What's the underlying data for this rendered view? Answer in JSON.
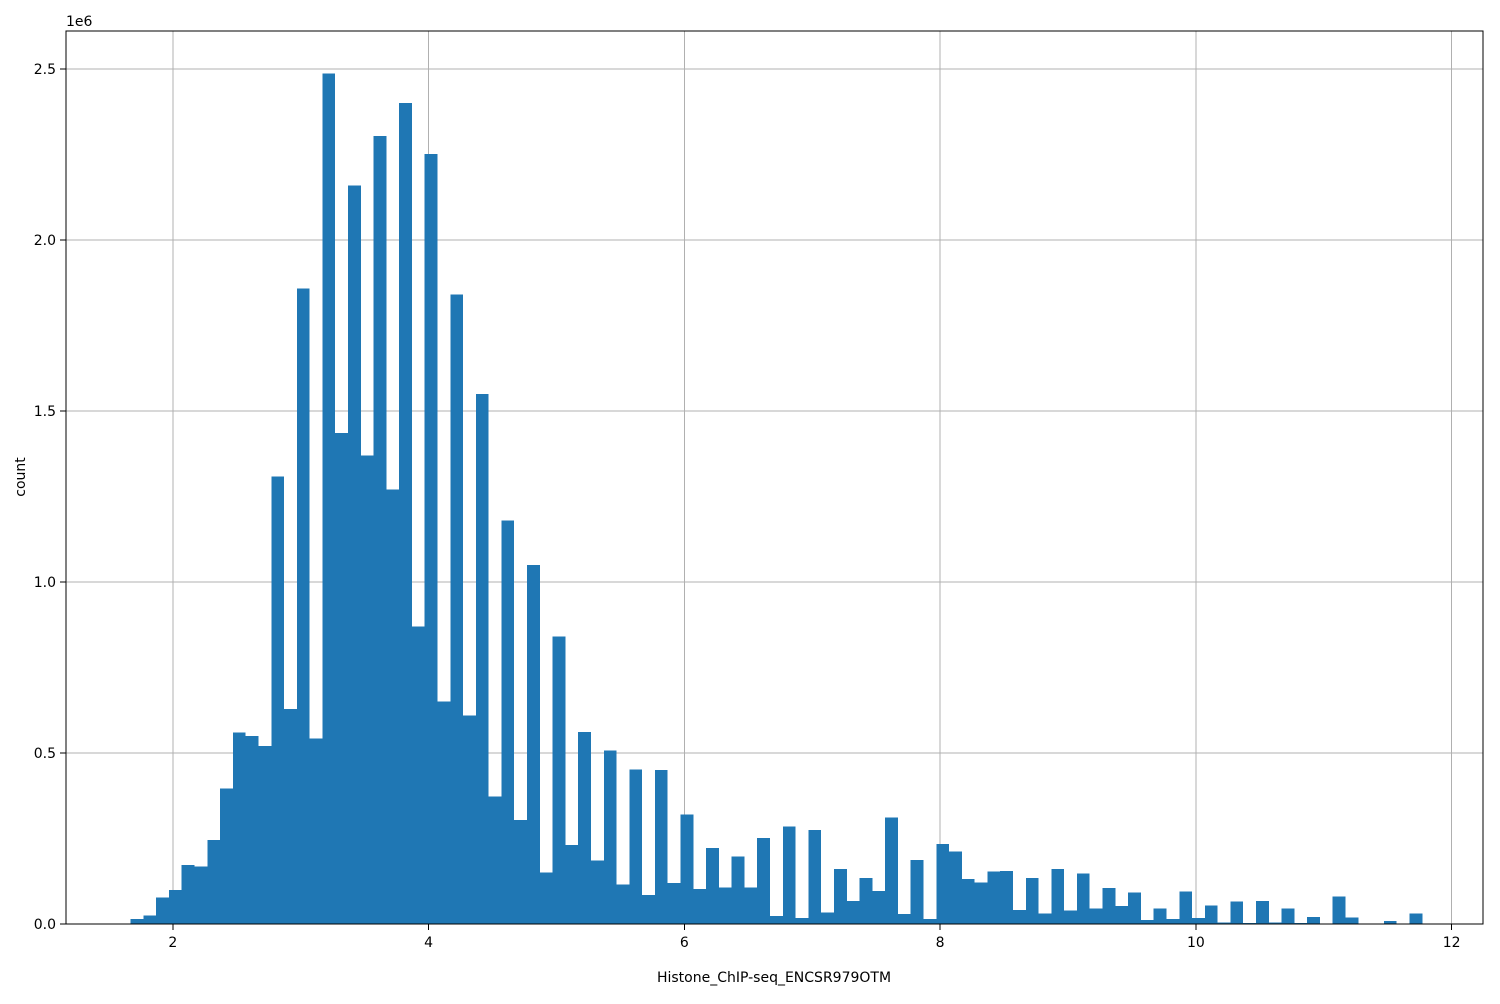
{
  "figure": {
    "background": "#ffffff"
  },
  "chart_data": {
    "type": "bar",
    "subtype": "histogram",
    "title": "",
    "xlabel": "Histone_ChIP-seq_ENCSR979OTM",
    "ylabel": "count",
    "y_offset_text": "1e6",
    "bar_color": "#1f77b4",
    "grid": true,
    "grid_color": "#b0b0b0",
    "spine_color": "#000000",
    "tick_color": "#000000",
    "text_color": "#000000",
    "legend": "none",
    "xlim": [
      1.165,
      12.245
    ],
    "ylim": [
      0,
      2611000
    ],
    "x_ticks": [
      {
        "v": 2,
        "label": "2"
      },
      {
        "v": 4,
        "label": "4"
      },
      {
        "v": 6,
        "label": "6"
      },
      {
        "v": 8,
        "label": "8"
      },
      {
        "v": 10,
        "label": "10"
      },
      {
        "v": 12,
        "label": "12"
      }
    ],
    "y_ticks": [
      {
        "v": 0,
        "label": "0.0"
      },
      {
        "v": 500000,
        "label": "0.5"
      },
      {
        "v": 1000000,
        "label": "1.0"
      },
      {
        "v": 1500000,
        "label": "1.5"
      },
      {
        "v": 2000000,
        "label": "2.0"
      },
      {
        "v": 2500000,
        "label": "2.5"
      }
    ],
    "bins": {
      "start": 1.67,
      "width": 0.1,
      "count": 101
    },
    "counts": [
      15000,
      25000,
      78000,
      99000,
      172000,
      168000,
      246000,
      396000,
      560000,
      550000,
      520000,
      1308000,
      629000,
      1858000,
      543000,
      2487000,
      1436000,
      2159000,
      1370000,
      2304000,
      1270000,
      2400000,
      870000,
      2251000,
      650000,
      1840000,
      610000,
      1550000,
      373000,
      1180000,
      304000,
      1050000,
      151000,
      840000,
      231000,
      562000,
      185000,
      508000,
      115000,
      452000,
      85000,
      451000,
      120000,
      320000,
      102000,
      222000,
      107000,
      197000,
      107000,
      252000,
      23000,
      285000,
      17000,
      275000,
      33000,
      161000,
      67000,
      134000,
      96000,
      311000,
      29000,
      187000,
      14000,
      234000,
      212000,
      131000,
      121000,
      153000,
      155000,
      41000,
      134000,
      31000,
      161000,
      39000,
      147000,
      45000,
      105000,
      53000,
      92000,
      12000,
      46000,
      15000,
      95000,
      18000,
      54000,
      5000,
      66000,
      3000,
      67000,
      4000,
      46000,
      3000,
      20000,
      1000,
      81000,
      19000,
      0,
      0,
      9000,
      0,
      30000
    ]
  }
}
